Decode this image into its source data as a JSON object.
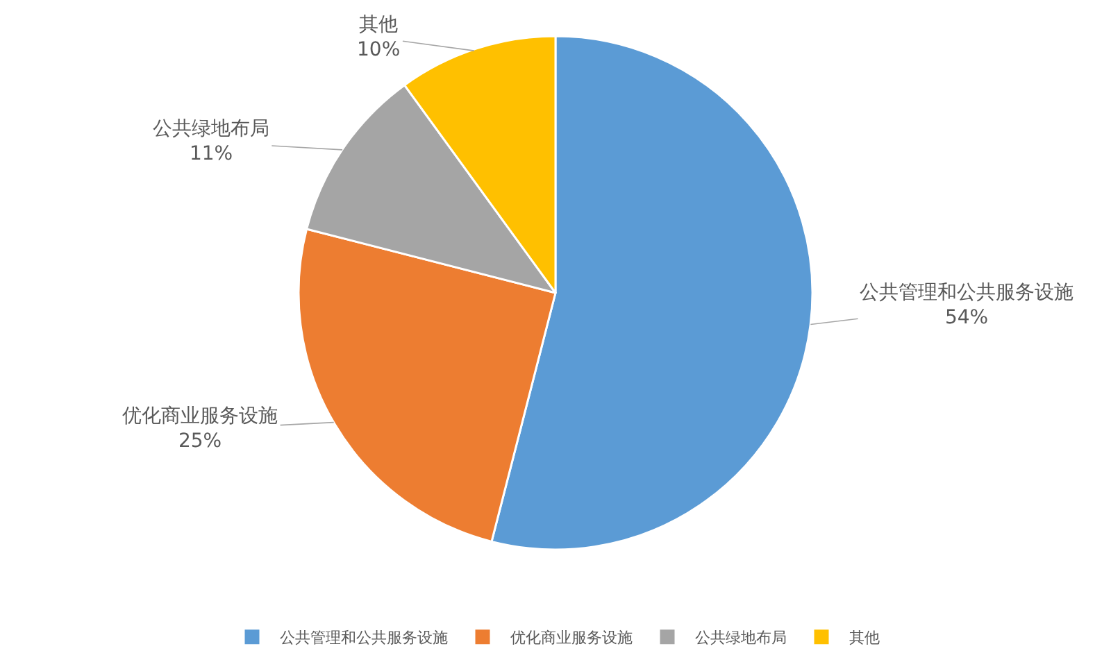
{
  "chart_data": {
    "type": "pie",
    "categories": [
      "公共管理和公共服务设施",
      "优化商业服务设施",
      "公共绿地布局",
      "其他"
    ],
    "values": [
      54,
      25,
      11,
      10
    ],
    "value_labels": [
      "54%",
      "25%",
      "11%",
      "10%"
    ],
    "colors": [
      "#5b9bd5",
      "#ed7d31",
      "#a5a5a5",
      "#ffc000"
    ],
    "legend": "bottom"
  }
}
